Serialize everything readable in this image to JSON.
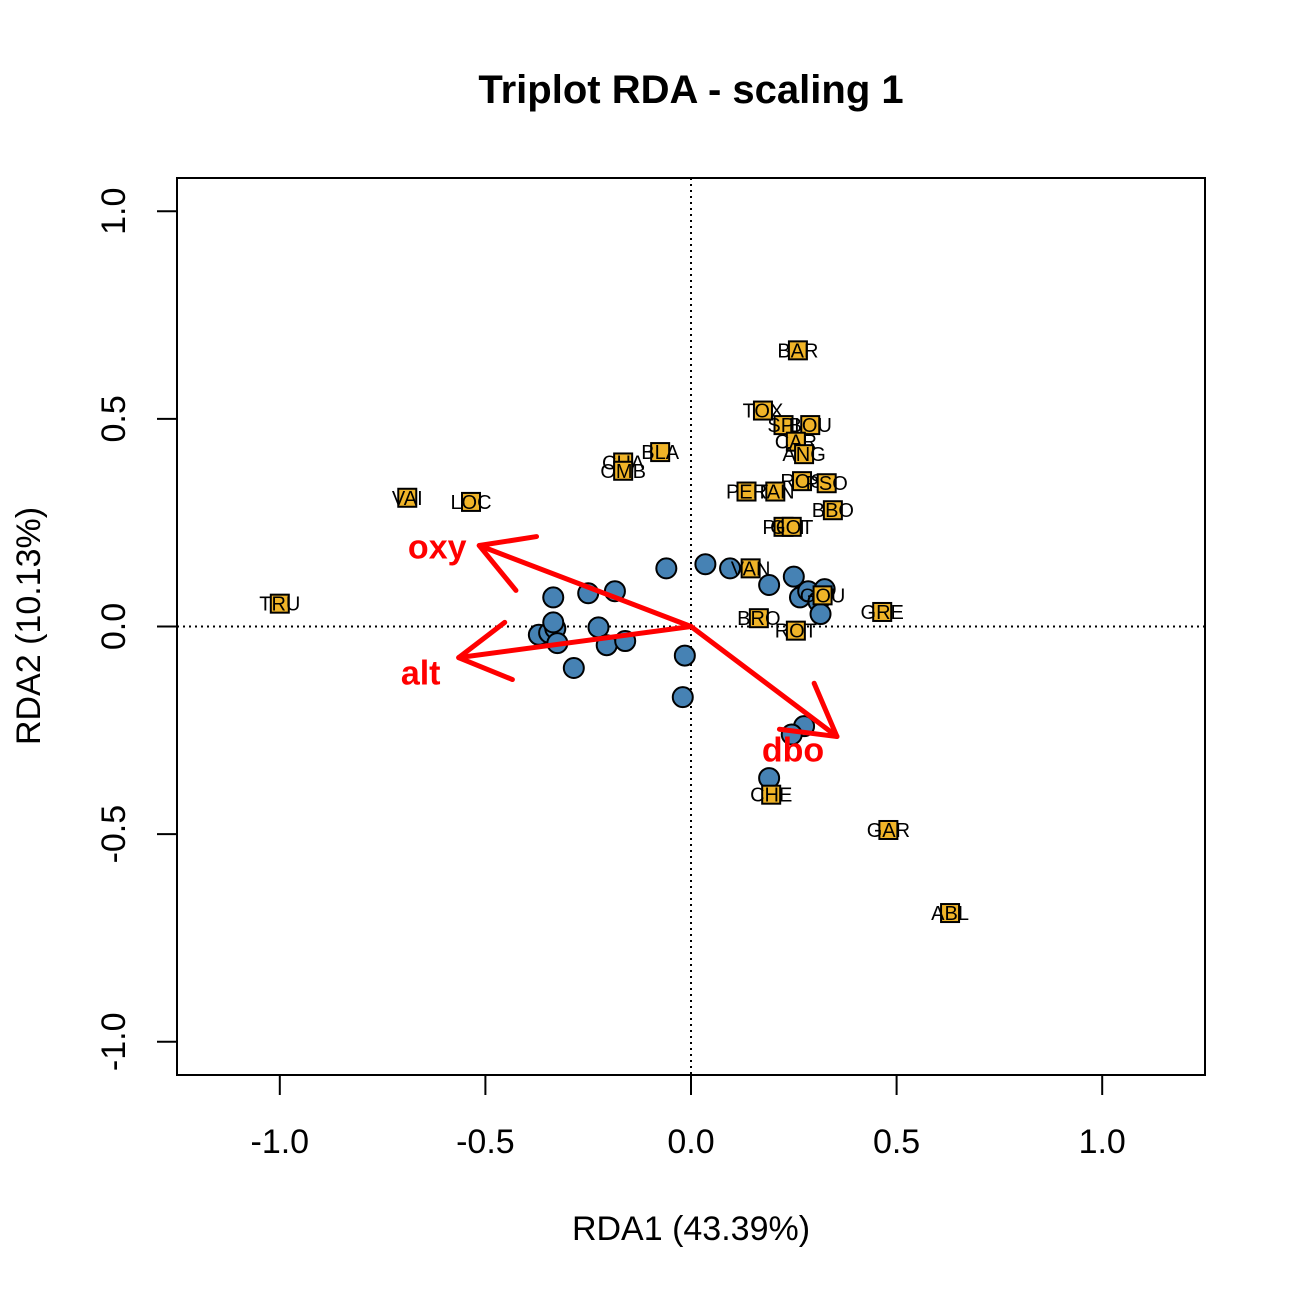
{
  "chart_data": {
    "type": "scatter",
    "title": "Triplot RDA - scaling 1",
    "xlabel": "RDA1 (43.39%)",
    "ylabel": "RDA2 (10.13%)",
    "xlim": [
      -1.25,
      1.25
    ],
    "ylim": [
      -1.08,
      1.08
    ],
    "x_ticks": [
      -1.0,
      -0.5,
      0.0,
      0.5,
      1.0
    ],
    "x_tick_labels": [
      "-1.0",
      "-0.5",
      "0.0",
      "0.5",
      "1.0"
    ],
    "y_ticks": [
      -1.0,
      -0.5,
      0.0,
      0.5,
      1.0
    ],
    "y_tick_labels": [
      "-1.0",
      "-0.5",
      "0.0",
      "0.5",
      "1.0"
    ],
    "grid": false,
    "reference_lines": [
      0,
      0
    ],
    "colors": {
      "sites_fill": "#4682b4",
      "species_fill": "#f0b428",
      "arrows": "#ff0000"
    },
    "sites": [
      {
        "x": -0.37,
        "y": -0.02
      },
      {
        "x": -0.345,
        "y": -0.015
      },
      {
        "x": -0.33,
        "y": -0.005
      },
      {
        "x": -0.325,
        "y": -0.04
      },
      {
        "x": -0.335,
        "y": 0.01
      },
      {
        "x": -0.335,
        "y": 0.07
      },
      {
        "x": -0.285,
        "y": -0.1
      },
      {
        "x": -0.25,
        "y": 0.08
      },
      {
        "x": -0.225,
        "y": -0.002
      },
      {
        "x": -0.205,
        "y": -0.045
      },
      {
        "x": -0.185,
        "y": 0.085
      },
      {
        "x": -0.16,
        "y": -0.035
      },
      {
        "x": -0.06,
        "y": 0.14
      },
      {
        "x": -0.015,
        "y": -0.07
      },
      {
        "x": -0.02,
        "y": -0.17
      },
      {
        "x": 0.035,
        "y": 0.15
      },
      {
        "x": 0.095,
        "y": 0.14
      },
      {
        "x": 0.19,
        "y": 0.1
      },
      {
        "x": 0.25,
        "y": 0.12
      },
      {
        "x": 0.265,
        "y": 0.07
      },
      {
        "x": 0.285,
        "y": 0.085
      },
      {
        "x": 0.31,
        "y": 0.06
      },
      {
        "x": 0.315,
        "y": 0.03
      },
      {
        "x": 0.325,
        "y": 0.09
      },
      {
        "x": 0.275,
        "y": -0.24
      },
      {
        "x": 0.245,
        "y": -0.26
      },
      {
        "x": 0.19,
        "y": -0.365
      }
    ],
    "species": [
      {
        "label": "BAR",
        "x": 0.26,
        "y": 0.665
      },
      {
        "label": "TOX",
        "x": 0.175,
        "y": 0.52
      },
      {
        "label": "SPI",
        "x": 0.225,
        "y": 0.485
      },
      {
        "label": "BOU",
        "x": 0.29,
        "y": 0.485
      },
      {
        "label": "CAR",
        "x": 0.255,
        "y": 0.445
      },
      {
        "label": "ANG",
        "x": 0.275,
        "y": 0.415
      },
      {
        "label": "BLA",
        "x": -0.075,
        "y": 0.42
      },
      {
        "label": "CHA",
        "x": -0.165,
        "y": 0.395
      },
      {
        "label": "OMB",
        "x": -0.165,
        "y": 0.375
      },
      {
        "label": "ROS",
        "x": 0.27,
        "y": 0.35
      },
      {
        "label": "PSO",
        "x": 0.33,
        "y": 0.345
      },
      {
        "label": "PER",
        "x": 0.135,
        "y": 0.325
      },
      {
        "label": "TAN",
        "x": 0.205,
        "y": 0.325
      },
      {
        "label": "BBO",
        "x": 0.345,
        "y": 0.28
      },
      {
        "label": "PCH",
        "x": 0.225,
        "y": 0.24
      },
      {
        "label": "GOT",
        "x": 0.245,
        "y": 0.24
      },
      {
        "label": "VAI",
        "x": -0.69,
        "y": 0.31
      },
      {
        "label": "LOC",
        "x": -0.535,
        "y": 0.3
      },
      {
        "label": "VAN",
        "x": 0.145,
        "y": 0.14
      },
      {
        "label": "GOU",
        "x": 0.32,
        "y": 0.075
      },
      {
        "label": "GRE",
        "x": 0.465,
        "y": 0.035
      },
      {
        "label": "TRU",
        "x": -1.0,
        "y": 0.055
      },
      {
        "label": "BRO",
        "x": 0.165,
        "y": 0.02
      },
      {
        "label": "ROT",
        "x": 0.255,
        "y": -0.01
      },
      {
        "label": "CHE",
        "x": 0.195,
        "y": -0.405
      },
      {
        "label": "GAR",
        "x": 0.48,
        "y": -0.49
      },
      {
        "label": "ABL",
        "x": 0.63,
        "y": -0.69
      }
    ],
    "env_vectors": [
      {
        "label": "oxy",
        "x": -0.515,
        "y": 0.195
      },
      {
        "label": "alt",
        "x": -0.565,
        "y": -0.075
      },
      {
        "label": "dbo",
        "x": 0.355,
        "y": -0.265
      }
    ]
  }
}
